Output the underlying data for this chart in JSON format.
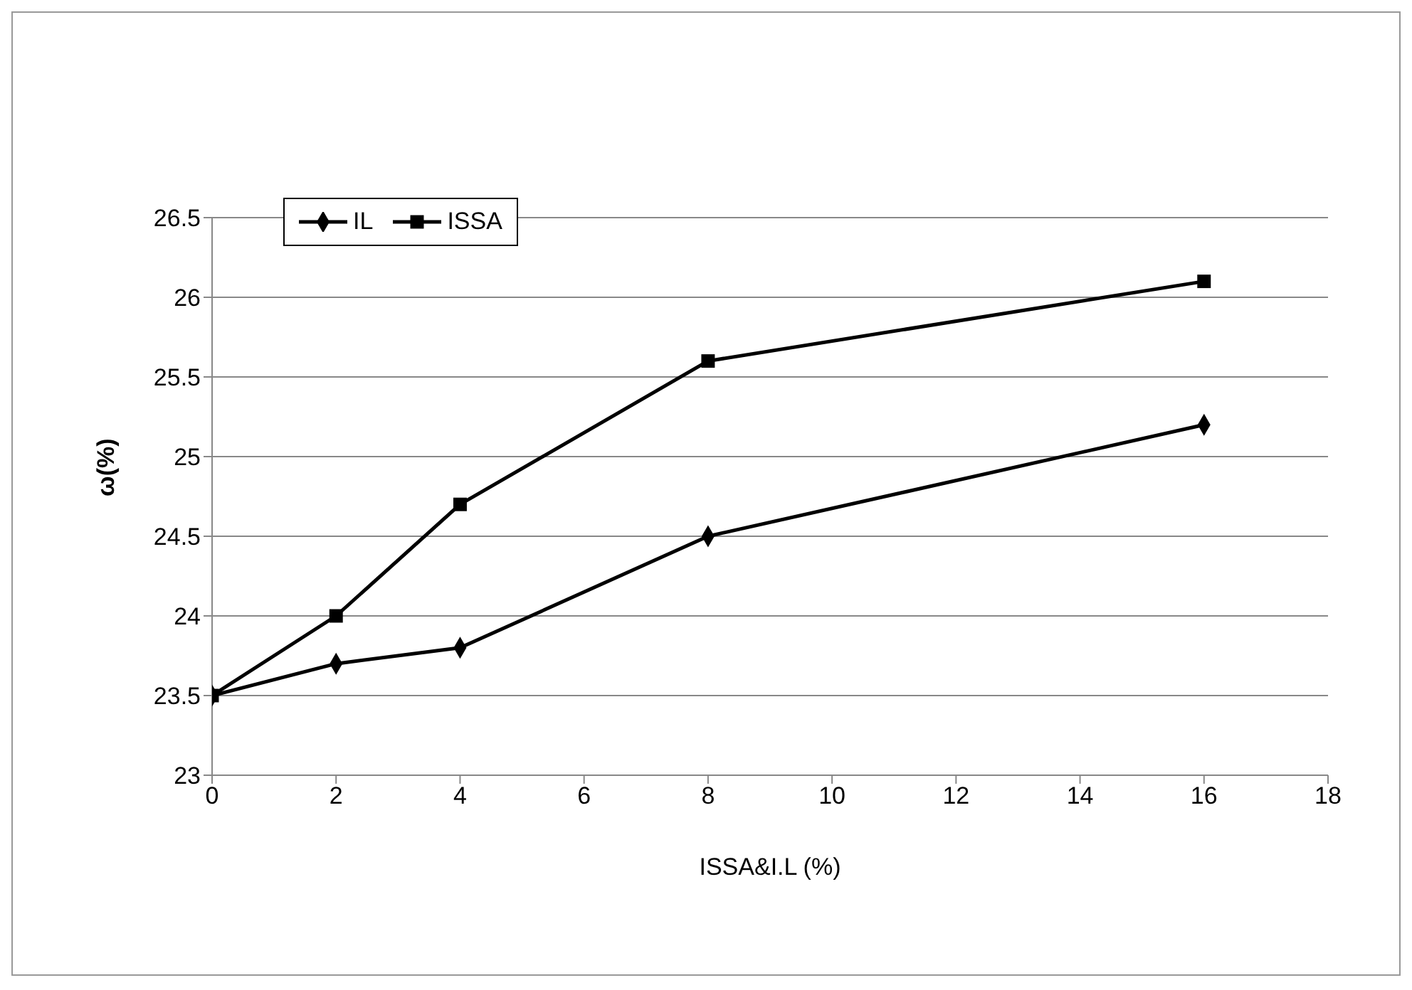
{
  "chart_data": {
    "type": "line",
    "xlabel": "ISSA&I.L (%)",
    "ylabel": "ω(%)",
    "xlim": [
      0,
      18
    ],
    "xticks": [
      0,
      2,
      4,
      6,
      8,
      10,
      12,
      14,
      16,
      18
    ],
    "ylim": [
      23,
      26.5
    ],
    "yticks": [
      23,
      23.5,
      24,
      24.5,
      25,
      25.5,
      26,
      26.5
    ],
    "grid": "y",
    "legend": "top left",
    "line_style": "solid",
    "series": [
      {
        "name": "IL",
        "color": "#000000",
        "marker": "diamond",
        "x": [
          0,
          2,
          4,
          8,
          16
        ],
        "values": [
          23.5,
          23.7,
          23.8,
          24.5,
          25.2
        ]
      },
      {
        "name": "ISSA",
        "color": "#000000",
        "marker": "square",
        "x": [
          0,
          2,
          4,
          8,
          16
        ],
        "values": [
          23.5,
          24,
          24.7,
          25.6,
          26.1
        ]
      }
    ]
  }
}
